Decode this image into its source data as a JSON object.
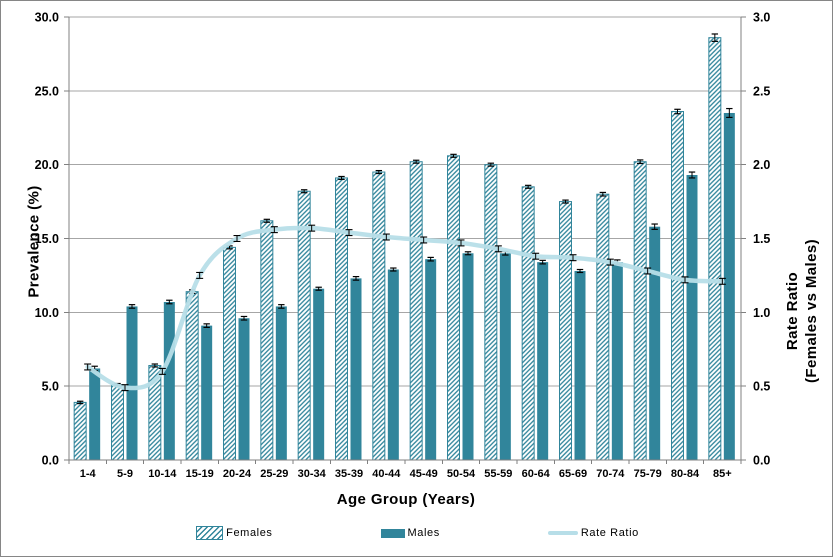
{
  "chart_data": {
    "type": "bar",
    "subtype": "grouped-bars-with-secondary-axis-line",
    "title": "",
    "categories": [
      "1-4",
      "5-9",
      "10-14",
      "15-19",
      "20-24",
      "25-29",
      "30-34",
      "35-39",
      "40-44",
      "45-49",
      "50-54",
      "55-59",
      "60-64",
      "65-69",
      "70-74",
      "75-79",
      "80-84",
      "85+"
    ],
    "series": [
      {
        "name": "Females",
        "type": "bar",
        "axis": "left",
        "style": "hatched",
        "values": [
          3.9,
          5.1,
          6.4,
          11.4,
          14.4,
          16.2,
          18.2,
          19.1,
          19.5,
          20.2,
          20.6,
          20.0,
          18.5,
          17.5,
          18.0,
          20.2,
          23.6,
          28.6
        ],
        "errors": [
          0.08,
          0.08,
          0.1,
          0.12,
          0.1,
          0.1,
          0.1,
          0.1,
          0.1,
          0.1,
          0.1,
          0.1,
          0.1,
          0.1,
          0.12,
          0.12,
          0.15,
          0.25
        ]
      },
      {
        "name": "Males",
        "type": "bar",
        "axis": "left",
        "style": "solid",
        "values": [
          6.2,
          10.4,
          10.7,
          9.1,
          9.6,
          10.4,
          11.6,
          12.3,
          12.9,
          13.6,
          14.0,
          14.0,
          13.4,
          12.8,
          13.4,
          15.8,
          19.3,
          23.5
        ],
        "errors": [
          0.15,
          0.12,
          0.12,
          0.12,
          0.12,
          0.12,
          0.1,
          0.12,
          0.1,
          0.12,
          0.1,
          0.12,
          0.12,
          0.1,
          0.15,
          0.18,
          0.2,
          0.3
        ]
      },
      {
        "name": "Rate Ratio",
        "type": "line",
        "axis": "right",
        "style": "smooth",
        "values": [
          0.63,
          0.49,
          0.6,
          1.25,
          1.5,
          1.56,
          1.57,
          1.54,
          1.51,
          1.49,
          1.47,
          1.43,
          1.38,
          1.37,
          1.34,
          1.28,
          1.22,
          1.21
        ],
        "errors": [
          0.02,
          0.02,
          0.02,
          0.02,
          0.02,
          0.02,
          0.02,
          0.02,
          0.02,
          0.02,
          0.02,
          0.02,
          0.02,
          0.02,
          0.02,
          0.02,
          0.02,
          0.02
        ]
      }
    ],
    "xlabel": "Age Group (Years)",
    "ylabel": "Prevalence (%)",
    "ylabel_right_line1": "Rate Ratio",
    "ylabel_right_line2": "(Females vs Males)",
    "left_axis": {
      "min": 0,
      "max": 30,
      "step": 5,
      "tick_labels": [
        "0.0",
        "5.0",
        "10.0",
        "15.0",
        "20.0",
        "25.0",
        "30.0"
      ]
    },
    "right_axis": {
      "min": 0,
      "max": 3,
      "step": 0.5,
      "tick_labels": [
        "0.0",
        "0.5",
        "1.0",
        "1.5",
        "2.0",
        "2.5",
        "3.0"
      ]
    },
    "grid": true,
    "legend_position": "bottom"
  },
  "colors": {
    "teal": "#31859B",
    "ratio_line": "#B7DEE8",
    "gridline": "#A6A6A6",
    "axis": "#808080",
    "error_bar": "#000000",
    "text": "#000000"
  },
  "legend": {
    "females_label": "Females",
    "males_label": "Males",
    "ratio_label": "Rate Ratio"
  }
}
